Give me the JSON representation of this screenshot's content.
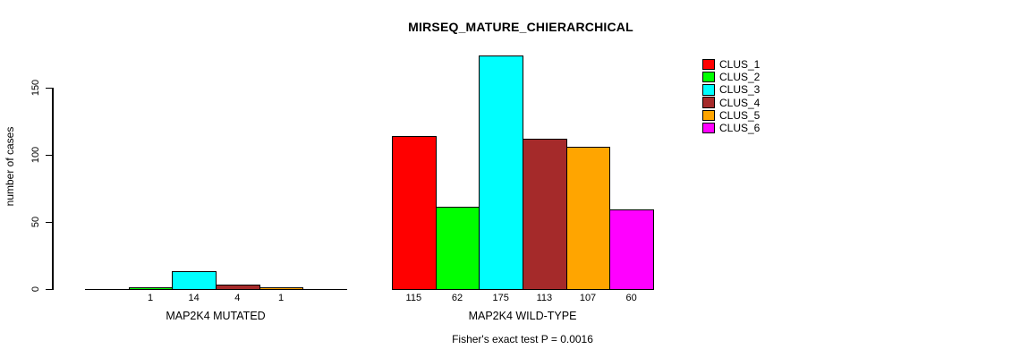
{
  "chart_data": {
    "type": "bar",
    "title": "MIRSEQ_MATURE_CHIERARCHICAL",
    "ylabel": "number of cases",
    "ylim": [
      0,
      175
    ],
    "yticks": [
      0,
      50,
      100,
      150
    ],
    "grid": false,
    "legend_position": "top-right",
    "legend": [
      {
        "label": "CLUS_1",
        "color": "#FF0000"
      },
      {
        "label": "CLUS_2",
        "color": "#00FF00"
      },
      {
        "label": "CLUS_3",
        "color": "#00FFFF"
      },
      {
        "label": "CLUS_4",
        "color": "#A52A2A"
      },
      {
        "label": "CLUS_5",
        "color": "#FFA500"
      },
      {
        "label": "CLUS_6",
        "color": "#FF00FF"
      }
    ],
    "series_colors": [
      "#FF0000",
      "#00FF00",
      "#00FFFF",
      "#A52A2A",
      "#FFA500",
      "#FF00FF"
    ],
    "groups": [
      {
        "label": "MAP2K4 MUTATED",
        "categories": [
          "CLUS_1",
          "CLUS_2",
          "CLUS_3",
          "CLUS_4",
          "CLUS_5",
          "CLUS_6"
        ],
        "values": [
          0,
          1,
          14,
          4,
          1,
          0
        ],
        "bar_labels": [
          "",
          "1",
          "14",
          "4",
          "1",
          ""
        ]
      },
      {
        "label": "MAP2K4 WILD-TYPE",
        "categories": [
          "CLUS_1",
          "CLUS_2",
          "CLUS_3",
          "CLUS_4",
          "CLUS_5",
          "CLUS_6"
        ],
        "values": [
          115,
          62,
          175,
          113,
          107,
          60
        ],
        "bar_labels": [
          "115",
          "62",
          "175",
          "113",
          "107",
          "60"
        ]
      }
    ],
    "annotation": "Fisher's exact test P = 0.0016"
  }
}
